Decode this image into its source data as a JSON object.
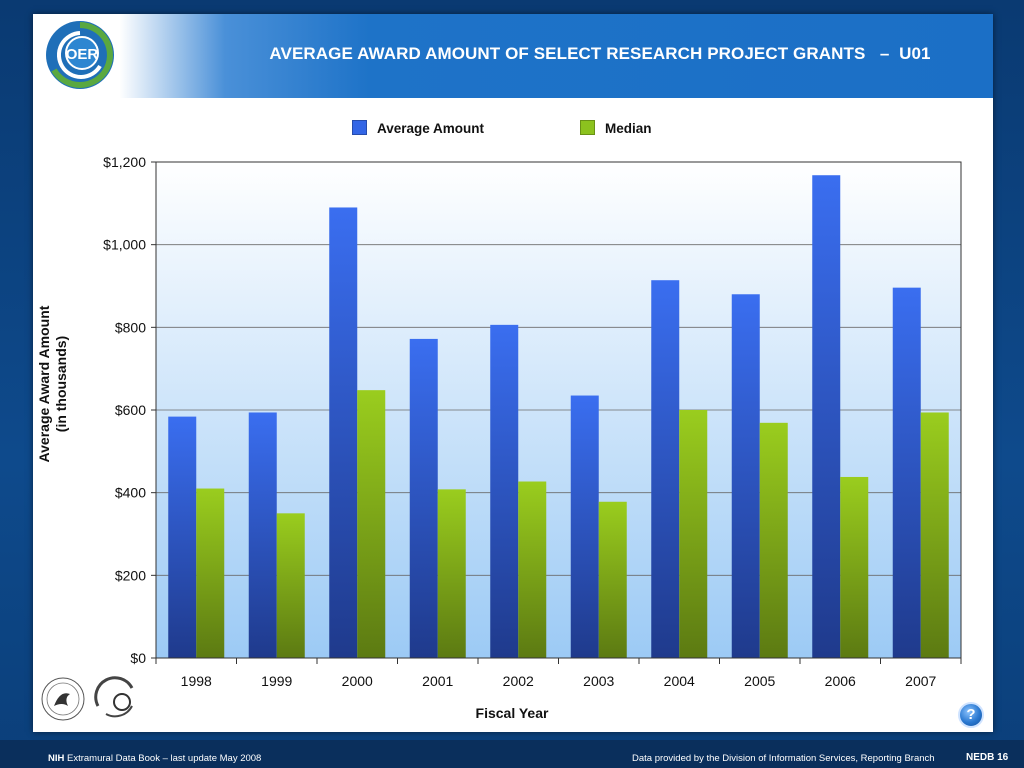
{
  "header": {
    "logo_text": "OER",
    "title": "AVERAGE AWARD AMOUNT OF SELECT RESEARCH PROJECT GRANTS   –  U01"
  },
  "colors": {
    "average": "#3366e6",
    "median": "#8cc21e"
  },
  "chart_data": {
    "type": "bar",
    "categories": [
      "1998",
      "1999",
      "2000",
      "2001",
      "2002",
      "2003",
      "2004",
      "2005",
      "2006",
      "2007"
    ],
    "series": [
      {
        "name": "Average Amount",
        "values": [
          584,
          594,
          1090,
          772,
          806,
          635,
          914,
          880,
          1168,
          896
        ]
      },
      {
        "name": "Median",
        "values": [
          410,
          350,
          648,
          408,
          427,
          378,
          600,
          569,
          438,
          594
        ]
      }
    ],
    "ylabel_line1": "Average Award Amount",
    "ylabel_line2": "(in thousands)",
    "xlabel": "Fiscal Year",
    "ylim": [
      0,
      1200
    ],
    "yticks": [
      0,
      200,
      400,
      600,
      800,
      1000,
      1200
    ],
    "ytick_labels": [
      "$0",
      "$200",
      "$400",
      "$600",
      "$800",
      "$1,000",
      "$1,200"
    ],
    "grid": true,
    "legend_position": "top"
  },
  "footer": {
    "left_bold": "NIH",
    "left_text": " Extramural Data Book – last update May 2008",
    "right_text": "Data provided by the Division of Information Services, Reporting Branch",
    "page_label": "NEDB 16"
  },
  "help_label": "?"
}
